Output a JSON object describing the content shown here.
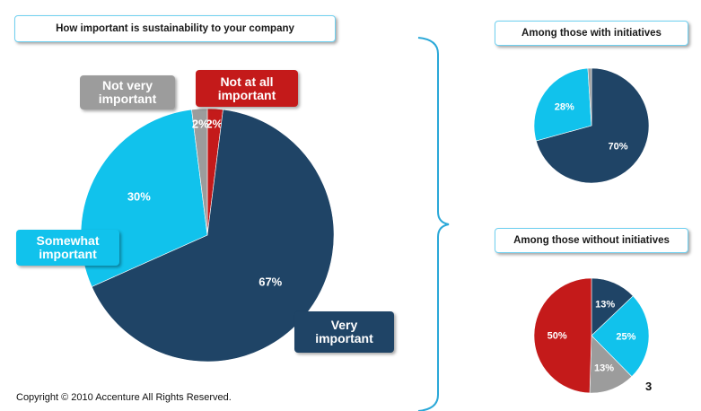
{
  "colors": {
    "very": "#1f4466",
    "somewhat": "#11c2ec",
    "not_very": "#9c9c9c",
    "not_at_all": "#c41a1a",
    "bracket": "#2aa8d8"
  },
  "chart_data": [
    {
      "type": "pie",
      "title": "How important is sustainability to your company",
      "slices": [
        {
          "label": "Not at all important",
          "value": 2,
          "display": "2%",
          "color": "#c41a1a"
        },
        {
          "label": "Very important",
          "value": 67,
          "display": "67%",
          "color": "#1f4466"
        },
        {
          "label": "Somewhat important",
          "value": 30,
          "display": "30%",
          "color": "#11c2ec"
        },
        {
          "label": "Not very important",
          "value": 2,
          "display": "2%",
          "color": "#9c9c9c"
        }
      ]
    },
    {
      "type": "pie",
      "title": "Among those with initiatives",
      "slices": [
        {
          "label": "Very important",
          "value": 70,
          "display": "70%",
          "color": "#1f4466"
        },
        {
          "label": "Somewhat important",
          "value": 28,
          "display": "28%",
          "color": "#11c2ec"
        },
        {
          "label": "Not very important",
          "value": 1,
          "display": "",
          "color": "#9c9c9c"
        }
      ]
    },
    {
      "type": "pie",
      "title": "Among those without initiatives",
      "slices": [
        {
          "label": "Very important",
          "value": 13,
          "display": "13%",
          "color": "#1f4466"
        },
        {
          "label": "Somewhat important",
          "value": 25,
          "display": "25%",
          "color": "#11c2ec"
        },
        {
          "label": "Not very important",
          "value": 13,
          "display": "13%",
          "color": "#9c9c9c"
        },
        {
          "label": "Not at all important",
          "value": 50,
          "display": "50%",
          "color": "#c41a1a"
        }
      ]
    }
  ],
  "callouts": {
    "not_very": "Not very\nimportant",
    "not_at_all": "Not at all\nimportant",
    "somewhat": "Somewhat\nimportant",
    "very": "Very\nimportant"
  },
  "footer": {
    "copyright": "Copyright © 2010 Accenture  All Rights Reserved.",
    "page_number": "3"
  }
}
